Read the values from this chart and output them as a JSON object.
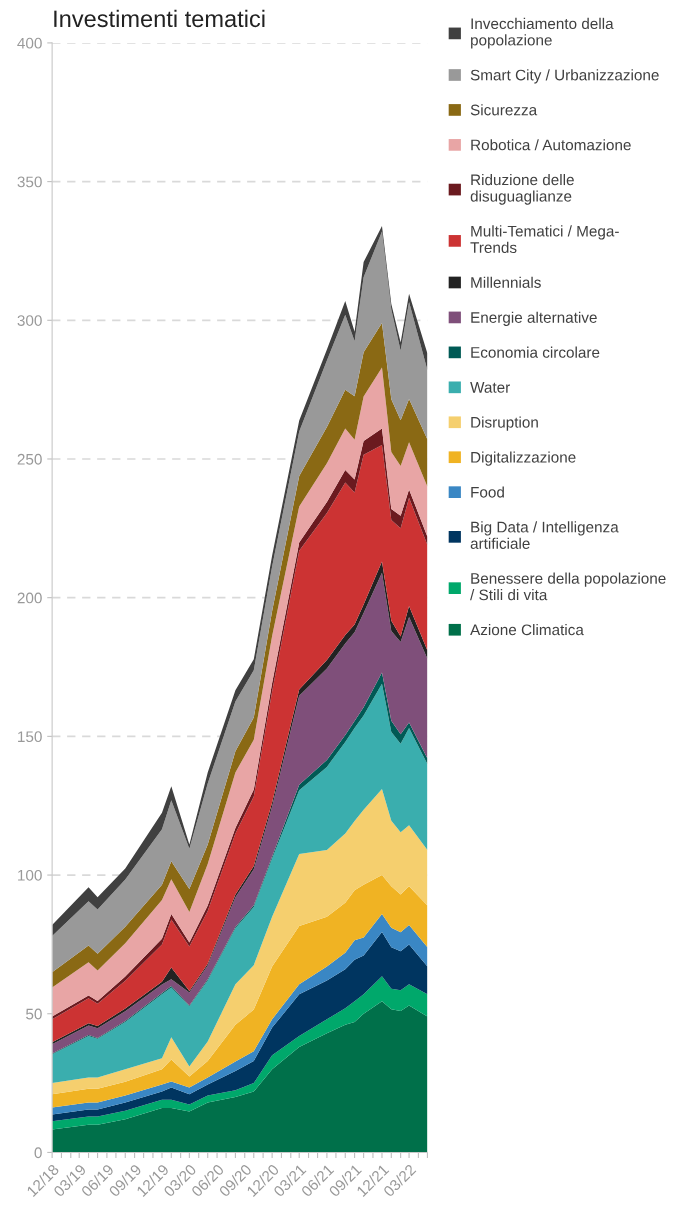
{
  "chart_data": {
    "type": "area",
    "stacked": true,
    "title": "Investimenti tematici",
    "x": [
      "2018-12",
      "2019-04",
      "2019-05",
      "2019-08",
      "2019-12",
      "2020-01",
      "2020-03",
      "2020-05",
      "2020-08",
      "2020-10",
      "2020-12",
      "2021-03",
      "2021-06",
      "2021-08",
      "2021-09",
      "2021-10",
      "2021-12",
      "2022-01",
      "2022-02",
      "2022-03",
      "2022-05"
    ],
    "xlim": [
      "2018-12",
      "2022-05"
    ],
    "xticks": [
      {
        "value": "2018-12",
        "label": "12/18"
      },
      {
        "value": "2019-01",
        "label": null
      },
      {
        "value": "2019-02",
        "label": null
      },
      {
        "value": "2019-03",
        "label": "03/19"
      },
      {
        "value": "2019-04",
        "label": null
      },
      {
        "value": "2019-05",
        "label": null
      },
      {
        "value": "2019-06",
        "label": "06/19"
      },
      {
        "value": "2019-07",
        "label": null
      },
      {
        "value": "2019-08",
        "label": null
      },
      {
        "value": "2019-09",
        "label": "09/19"
      },
      {
        "value": "2019-10",
        "label": null
      },
      {
        "value": "2019-11",
        "label": null
      },
      {
        "value": "2019-12",
        "label": "12/19"
      },
      {
        "value": "2020-01",
        "label": null
      },
      {
        "value": "2020-02",
        "label": null
      },
      {
        "value": "2020-03",
        "label": "03/20"
      },
      {
        "value": "2020-04",
        "label": null
      },
      {
        "value": "2020-05",
        "label": null
      },
      {
        "value": "2020-06",
        "label": "06/20"
      },
      {
        "value": "2020-07",
        "label": null
      },
      {
        "value": "2020-08",
        "label": null
      },
      {
        "value": "2020-09",
        "label": "09/20"
      },
      {
        "value": "2020-10",
        "label": null
      },
      {
        "value": "2020-11",
        "label": null
      },
      {
        "value": "2020-12",
        "label": "12/20"
      },
      {
        "value": "2021-01",
        "label": null
      },
      {
        "value": "2021-02",
        "label": null
      },
      {
        "value": "2021-03",
        "label": "03/21"
      },
      {
        "value": "2021-04",
        "label": null
      },
      {
        "value": "2021-05",
        "label": null
      },
      {
        "value": "2021-06",
        "label": "06/21"
      },
      {
        "value": "2021-07",
        "label": null
      },
      {
        "value": "2021-08",
        "label": null
      },
      {
        "value": "2021-09",
        "label": "09/21"
      },
      {
        "value": "2021-10",
        "label": null
      },
      {
        "value": "2021-11",
        "label": null
      },
      {
        "value": "2021-12",
        "label": "12/21"
      },
      {
        "value": "2022-01",
        "label": null
      },
      {
        "value": "2022-02",
        "label": null
      },
      {
        "value": "2022-03",
        "label": "03/22"
      },
      {
        "value": "2022-04",
        "label": null
      },
      {
        "value": "2022-05",
        "label": null
      }
    ],
    "ylim": [
      0,
      400
    ],
    "yticks": [
      0,
      50,
      100,
      150,
      200,
      250,
      300,
      350,
      400
    ],
    "grid": "y",
    "legend": "right",
    "series": [
      {
        "name": "Azione Climatica",
        "color": "#00704a",
        "values": [
          8.3,
          10,
          10,
          12,
          16,
          16,
          14.8,
          18,
          20,
          22,
          30,
          38,
          43,
          46,
          47,
          50,
          54.5,
          51.6,
          51,
          53,
          49
        ]
      },
      {
        "name": "Benessere della popolazione\n/ Stili di vita",
        "color": "#00a86b",
        "values": [
          2.9,
          3,
          3,
          3,
          3,
          3,
          2.5,
          2.5,
          2.4,
          3,
          5,
          4,
          5,
          6,
          7.5,
          7,
          9,
          7.4,
          7.5,
          7.6,
          8
        ]
      },
      {
        "name": "Big Data / Intelligenza\nartificiale",
        "color": "#003560",
        "values": [
          2.5,
          2.5,
          2.5,
          3,
          3,
          4.4,
          3.7,
          4,
          7,
          8,
          10,
          15,
          14,
          14,
          15,
          14,
          16,
          15,
          14,
          14.4,
          10
        ]
      },
      {
        "name": "Food",
        "color": "#3a87c4",
        "values": [
          2.5,
          2.5,
          2.5,
          2.5,
          2.5,
          2.2,
          2.4,
          2.5,
          3.4,
          3.5,
          3,
          3.6,
          5,
          6,
          7,
          6.5,
          6.5,
          7,
          6.9,
          7,
          7
        ]
      },
      {
        "name": "Digitalizzazione",
        "color": "#f0b323",
        "values": [
          4.8,
          5,
          5,
          5,
          5.5,
          7.9,
          4,
          6,
          13.2,
          15,
          19,
          21,
          18,
          18,
          18,
          19,
          14,
          15,
          13.6,
          14,
          15
        ]
      },
      {
        "name": "Disruption",
        "color": "#f5cf6e",
        "values": [
          4,
          4,
          4,
          4.5,
          4,
          8,
          3.6,
          7,
          14.6,
          16,
          18,
          26,
          24,
          25,
          25,
          27,
          31,
          23.6,
          22.4,
          22,
          20
        ]
      },
      {
        "name": "Water",
        "color": "#3aaeae",
        "values": [
          10.4,
          15,
          14,
          17,
          23,
          18,
          21.7,
          22,
          20.2,
          21,
          21,
          23,
          30,
          33,
          33.5,
          34,
          38,
          32,
          31.9,
          35,
          31
        ]
      },
      {
        "name": "Economia circolare",
        "color": "#005a55",
        "values": [
          0.3,
          0.3,
          0.3,
          0.4,
          0.5,
          0.5,
          0.3,
          0.4,
          0.5,
          0.6,
          0.7,
          2,
          2.5,
          2.5,
          2.5,
          3,
          4,
          4,
          3.5,
          2,
          2
        ]
      },
      {
        "name": "Energie alternative",
        "color": "#7f4f7a",
        "values": [
          3.3,
          3.5,
          3.5,
          3.5,
          3,
          2.4,
          4.7,
          5,
          10.7,
          13,
          18,
          32,
          33,
          33,
          32,
          34,
          36,
          32.4,
          33.2,
          38,
          36
        ]
      },
      {
        "name": "Millennials",
        "color": "#222222",
        "values": [
          0.7,
          0.8,
          0.8,
          1,
          1,
          4.3,
          0.5,
          0.6,
          1,
          1.2,
          1.5,
          2.3,
          3,
          3,
          2.8,
          3,
          4,
          3.7,
          2,
          4,
          3
        ]
      },
      {
        "name": "Multi-Tematici / Mega-\nTrends",
        "color": "#cc3333",
        "values": [
          8.3,
          9,
          8,
          10,
          13.5,
          17.3,
          16,
          19,
          22,
          25,
          40,
          50,
          53,
          55,
          47.6,
          54,
          42,
          36.3,
          39,
          39,
          38
        ]
      },
      {
        "name": "Riduzione delle\ndisuguaglianze",
        "color": "#6b1a1f",
        "values": [
          1,
          1,
          1,
          1.5,
          2,
          2,
          1.5,
          2,
          2,
          2.5,
          3,
          3,
          4,
          4.5,
          4.7,
          5,
          6,
          4,
          4.5,
          3,
          3
        ]
      },
      {
        "name": "Robotica / Automazione",
        "color": "#e8a5a5",
        "values": [
          10.5,
          12,
          11,
          12,
          14,
          12.5,
          11,
          15,
          20,
          18,
          17,
          13,
          14,
          15,
          14.3,
          16,
          22,
          20.5,
          18,
          17,
          18
        ]
      },
      {
        "name": "Sicurezza",
        "color": "#8a6914",
        "values": [
          5.5,
          6,
          6,
          6,
          5.5,
          6.5,
          8.3,
          7,
          7.6,
          8,
          9,
          11,
          13,
          14,
          15.7,
          16,
          16,
          19,
          16.5,
          15.6,
          17
        ]
      },
      {
        "name": "Smart City / Urbanizzazione",
        "color": "#999999",
        "values": [
          13,
          16,
          16,
          17,
          20,
          22,
          14.5,
          22,
          18,
          17,
          16,
          16,
          24,
          27,
          19.8,
          27,
          33,
          32.4,
          25,
          35,
          25
        ]
      },
      {
        "name": "Invecchiamento della\npopolazione",
        "color": "#404040",
        "values": [
          4,
          5,
          4.4,
          4,
          6,
          5,
          1.5,
          4,
          4,
          4,
          4,
          4,
          4,
          5,
          3.5,
          5.5,
          2,
          2,
          3,
          3,
          6
        ]
      }
    ]
  }
}
